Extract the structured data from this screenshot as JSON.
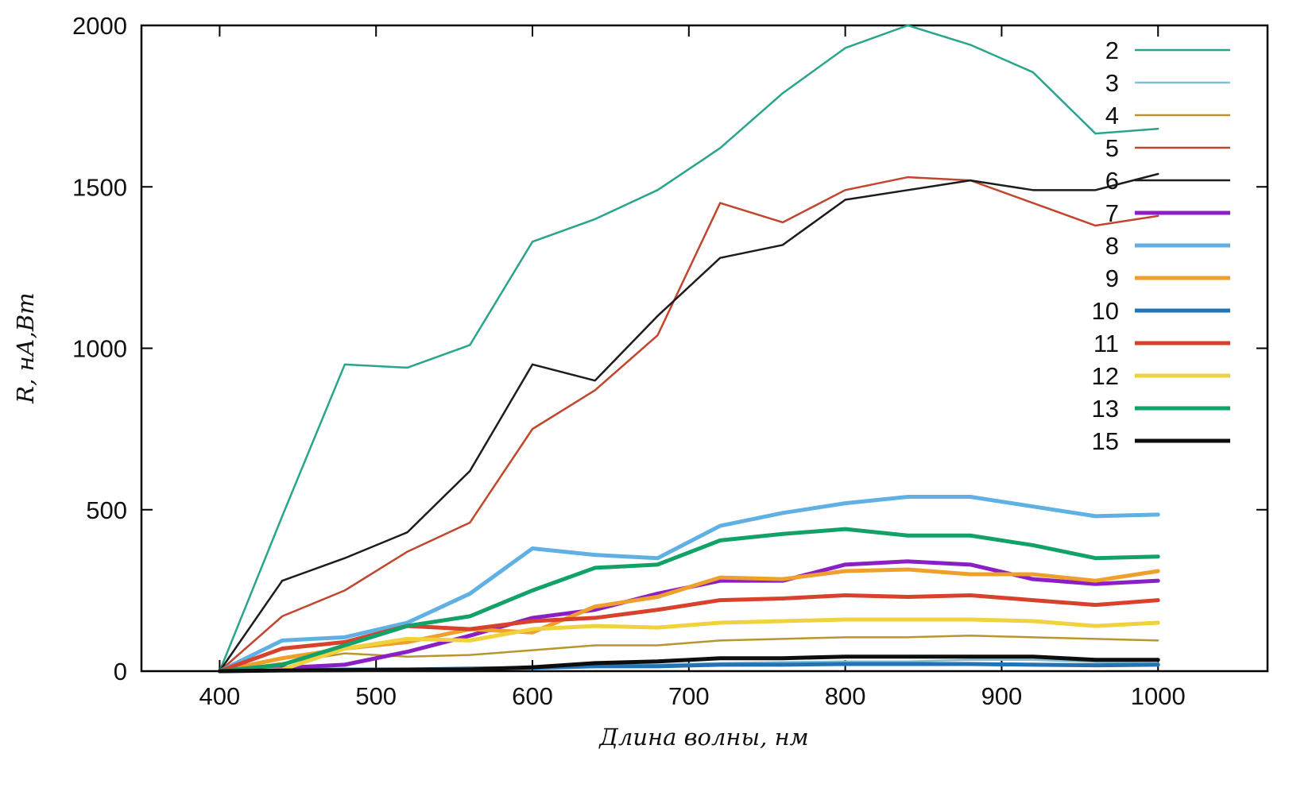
{
  "chart_data": {
    "type": "line",
    "title": "",
    "xlabel": "Длина волны, нм",
    "ylabel": "R, нА,Вт",
    "xlim": [
      350,
      1070
    ],
    "ylim": [
      0,
      2000
    ],
    "x_ticks": [
      400,
      500,
      600,
      700,
      800,
      900,
      1000
    ],
    "y_ticks": [
      0,
      500,
      1000,
      1500,
      2000
    ],
    "grid": false,
    "legend_position": "top-right-inside",
    "x": [
      400,
      440,
      480,
      520,
      560,
      600,
      640,
      680,
      720,
      760,
      800,
      840,
      880,
      920,
      960,
      1000
    ],
    "series": [
      {
        "name": "2",
        "color": "#2aa58d",
        "width": 2.5,
        "values": [
          0,
          480,
          950,
          940,
          1010,
          1330,
          1400,
          1490,
          1620,
          1790,
          1930,
          2000,
          1940,
          1855,
          1665,
          1680
        ]
      },
      {
        "name": "3",
        "color": "#7fbfd4",
        "width": 2.5,
        "values": [
          0,
          2,
          5,
          5,
          8,
          12,
          18,
          20,
          25,
          28,
          30,
          30,
          35,
          35,
          28,
          25
        ]
      },
      {
        "name": "4",
        "color": "#b8962e",
        "width": 2.5,
        "values": [
          0,
          25,
          55,
          45,
          50,
          65,
          80,
          80,
          95,
          100,
          105,
          105,
          110,
          105,
          100,
          95
        ]
      },
      {
        "name": "5",
        "color": "#c2452d",
        "width": 2.5,
        "values": [
          0,
          170,
          250,
          370,
          460,
          750,
          870,
          1040,
          1450,
          1390,
          1490,
          1530,
          1520,
          1450,
          1380,
          1410
        ]
      },
      {
        "name": "6",
        "color": "#1c1c1c",
        "width": 2.5,
        "values": [
          0,
          280,
          350,
          430,
          620,
          950,
          900,
          1100,
          1280,
          1320,
          1460,
          1490,
          1520,
          1490,
          1490,
          1540
        ]
      },
      {
        "name": "7",
        "color": "#8b1ec4",
        "width": 5,
        "values": [
          0,
          10,
          20,
          60,
          110,
          165,
          190,
          240,
          280,
          280,
          330,
          340,
          330,
          285,
          270,
          280
        ]
      },
      {
        "name": "8",
        "color": "#5fb0e3",
        "width": 5,
        "values": [
          0,
          95,
          105,
          150,
          240,
          380,
          360,
          350,
          450,
          490,
          520,
          540,
          540,
          510,
          480,
          485
        ]
      },
      {
        "name": "9",
        "color": "#efa02c",
        "width": 5,
        "values": [
          0,
          40,
          70,
          90,
          130,
          120,
          200,
          230,
          290,
          285,
          310,
          315,
          300,
          300,
          280,
          310
        ]
      },
      {
        "name": "10",
        "color": "#2272b5",
        "width": 5,
        "values": [
          0,
          3,
          5,
          5,
          8,
          10,
          15,
          15,
          20,
          20,
          22,
          22,
          22,
          20,
          18,
          20
        ]
      },
      {
        "name": "11",
        "color": "#d8412c",
        "width": 5,
        "values": [
          0,
          70,
          90,
          140,
          130,
          155,
          165,
          190,
          220,
          225,
          235,
          230,
          235,
          220,
          205,
          220
        ]
      },
      {
        "name": "12",
        "color": "#efd23e",
        "width": 5,
        "values": [
          0,
          5,
          70,
          100,
          95,
          130,
          140,
          135,
          150,
          155,
          160,
          160,
          160,
          155,
          140,
          150
        ]
      },
      {
        "name": "13",
        "color": "#12a268",
        "width": 5,
        "values": [
          0,
          20,
          80,
          140,
          170,
          250,
          320,
          330,
          405,
          425,
          440,
          420,
          420,
          390,
          350,
          355
        ]
      },
      {
        "name": "15",
        "color": "#0d0d0d",
        "width": 5,
        "values": [
          0,
          2,
          3,
          5,
          5,
          12,
          25,
          30,
          40,
          40,
          45,
          45,
          45,
          45,
          35,
          35
        ]
      }
    ],
    "border_color": "#000000"
  }
}
